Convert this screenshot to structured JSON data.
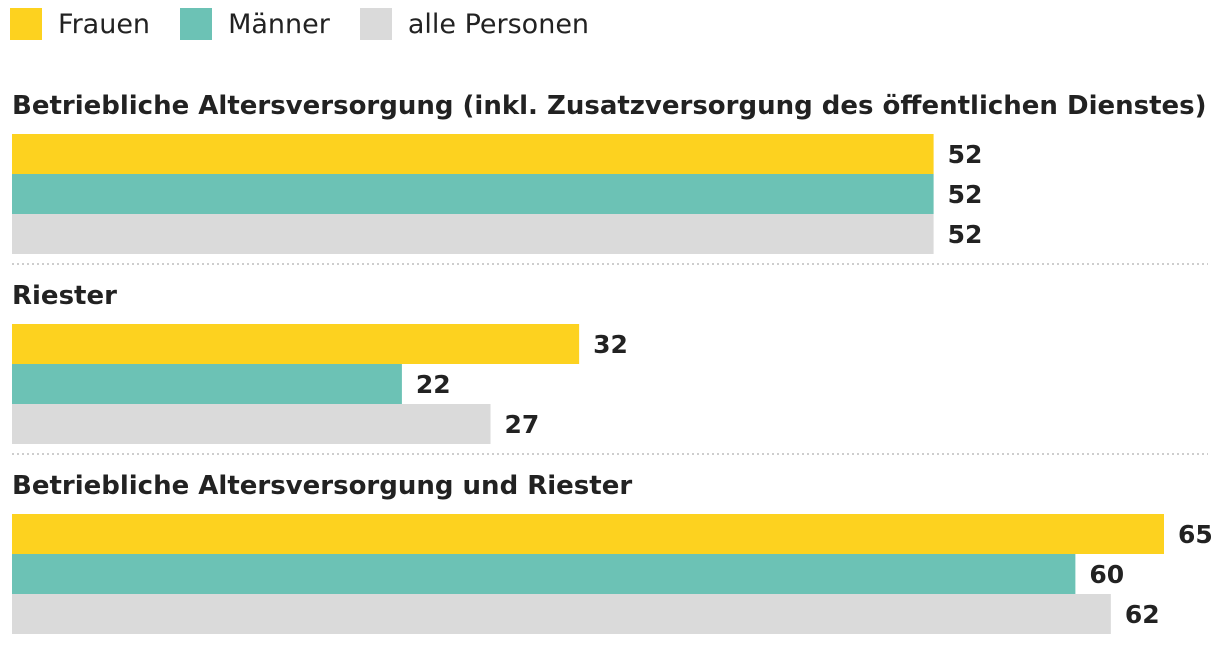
{
  "legend": [
    {
      "label": "Frauen",
      "color": "#fdd21f"
    },
    {
      "label": "Männer",
      "color": "#6cc2b5"
    },
    {
      "label": "alle Personen",
      "color": "#dadada"
    }
  ],
  "chart_data": {
    "type": "bar",
    "orientation": "horizontal",
    "series_names": [
      "Frauen",
      "Männer",
      "alle Personen"
    ],
    "groups": [
      {
        "title": "Betriebliche Altersversorgung (inkl. Zusatzversorgung des öffentlichen Dienstes)",
        "values": [
          52,
          52,
          52
        ]
      },
      {
        "title": "Riester",
        "values": [
          32,
          22,
          27
        ]
      },
      {
        "title": "Betriebliche Altersversorgung und Riester",
        "values": [
          65,
          60,
          62
        ]
      }
    ],
    "xlim": [
      0,
      65
    ],
    "legend_position": "top-left"
  }
}
